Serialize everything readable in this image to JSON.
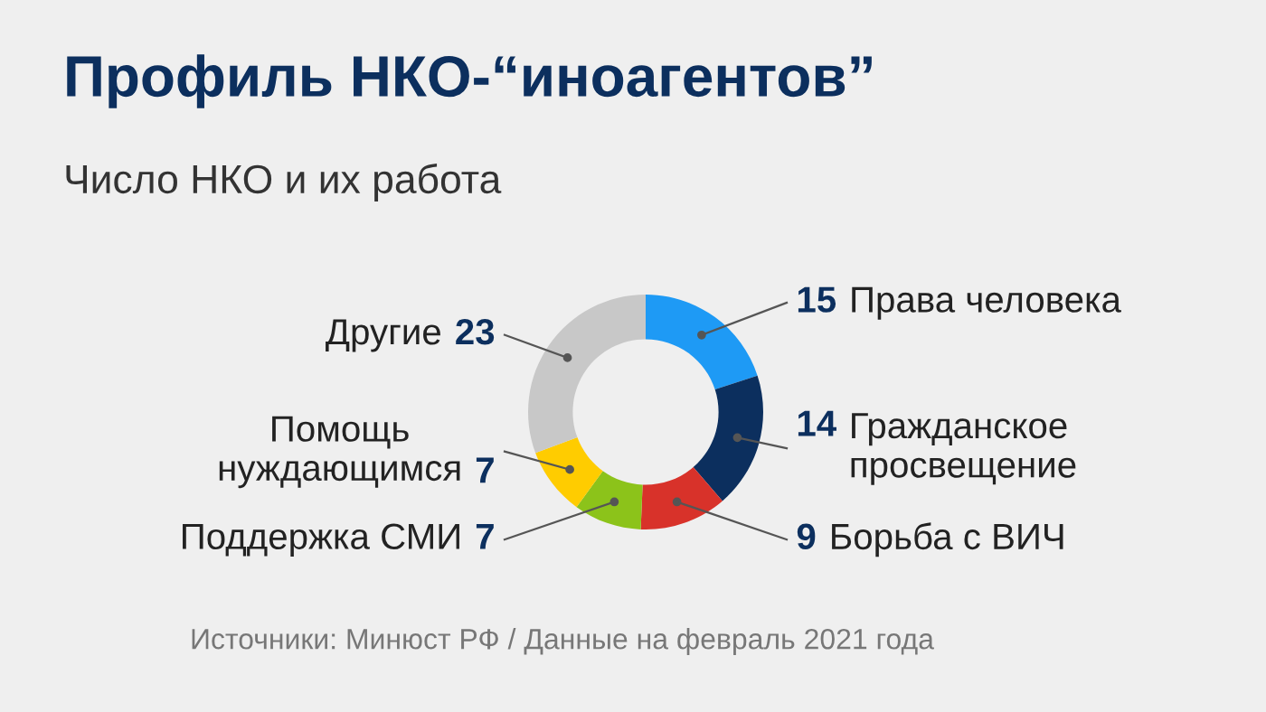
{
  "chart_data": {
    "type": "donut",
    "title": "Профиль НКО-“иноагентов”",
    "subtitle": "Число НКО и их работа",
    "categories": [
      "Права человека",
      "Гражданское\nпросвещение",
      "Борьба с ВИЧ",
      "Поддержка СМИ",
      "Помощь\nнуждающимся",
      "Другие"
    ],
    "values": [
      15,
      14,
      9,
      7,
      7,
      23
    ],
    "colors": [
      "#1e9af5",
      "#0c2f5e",
      "#d8322a",
      "#8cc31a",
      "#ffcc00",
      "#c8c8c8"
    ],
    "data_labels": true,
    "annotations": [
      "Источники: Минюст РФ / Данные на февраль 2021 года"
    ]
  }
}
